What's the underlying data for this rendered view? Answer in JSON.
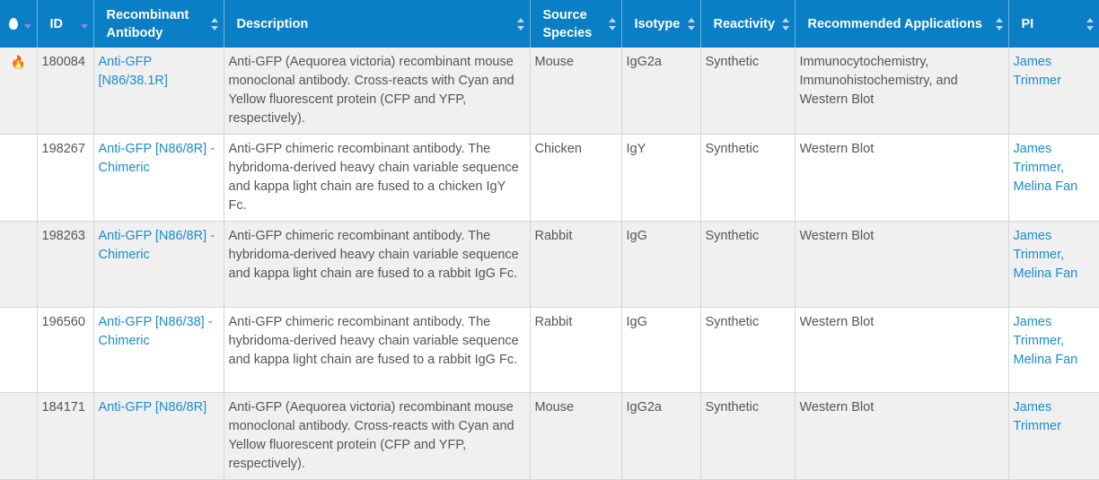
{
  "columns": [
    {
      "label": "",
      "icon": "fire-icon",
      "sort": "down"
    },
    {
      "label": "ID",
      "sort": "down"
    },
    {
      "label": "Recombinant Antibody",
      "sort": "both"
    },
    {
      "label": "Description",
      "sort": "both"
    },
    {
      "label": "Source Species",
      "sort": "both"
    },
    {
      "label": "Isotype",
      "sort": "both"
    },
    {
      "label": "Reactivity",
      "sort": "both"
    },
    {
      "label": "Recommended Applications",
      "sort": "both"
    },
    {
      "label": "PI",
      "sort": "both"
    }
  ],
  "rows": [
    {
      "hot": true,
      "id": "180084",
      "antibody": "Anti-GFP [N86/38.1R]",
      "description": "Anti-GFP (Aequorea victoria) recombinant mouse monoclonal antibody. Cross-reacts with Cyan and Yellow fluorescent protein (CFP and YFP, respectively).",
      "species": "Mouse",
      "isotype": "IgG2a",
      "reactivity": "Synthetic",
      "applications": "Immunocytochemistry, Immunohistochemistry, and Western Blot",
      "pi": [
        "James Trimmer"
      ]
    },
    {
      "hot": false,
      "id": "198267",
      "antibody": "Anti-GFP [N86/8R] - Chimeric",
      "description": "Anti-GFP chimeric recombinant antibody. The hybridoma-derived heavy chain variable sequence and kappa light chain are fused to a chicken IgY Fc.",
      "species": "Chicken",
      "isotype": "IgY",
      "reactivity": "Synthetic",
      "applications": "Western Blot",
      "pi": [
        "James Trimmer,",
        "Melina Fan"
      ]
    },
    {
      "hot": false,
      "id": "198263",
      "antibody": "Anti-GFP [N86/8R] - Chimeric",
      "description": "Anti-GFP chimeric recombinant antibody. The hybridoma-derived heavy chain variable sequence and kappa light chain are fused to a rabbit IgG Fc.",
      "species": "Rabbit",
      "isotype": "IgG",
      "reactivity": "Synthetic",
      "applications": "Western Blot",
      "pi": [
        "James Trimmer,",
        "Melina Fan"
      ]
    },
    {
      "hot": false,
      "id": "196560",
      "antibody": "Anti-GFP [N86/38] - Chimeric",
      "description": "Anti-GFP chimeric recombinant antibody. The hybridoma-derived heavy chain variable sequence and kappa light chain are fused to a rabbit IgG Fc.",
      "species": "Rabbit",
      "isotype": "IgG",
      "reactivity": "Synthetic",
      "applications": "Western Blot",
      "pi": [
        "James Trimmer,",
        "Melina Fan"
      ]
    },
    {
      "hot": false,
      "id": "184171",
      "antibody": "Anti-GFP [N86/8R]",
      "description": "Anti-GFP (Aequorea victoria) recombinant mouse monoclonal antibody. Cross-reacts with Cyan and Yellow fluorescent protein (CFP and YFP, respectively).",
      "species": "Mouse",
      "isotype": "IgG2a",
      "reactivity": "Synthetic",
      "applications": "Western Blot",
      "pi": [
        "James Trimmer"
      ]
    }
  ],
  "colors": {
    "header": "#0a7fc6",
    "link": "#1a8ccf",
    "hot": "#f0a020"
  }
}
